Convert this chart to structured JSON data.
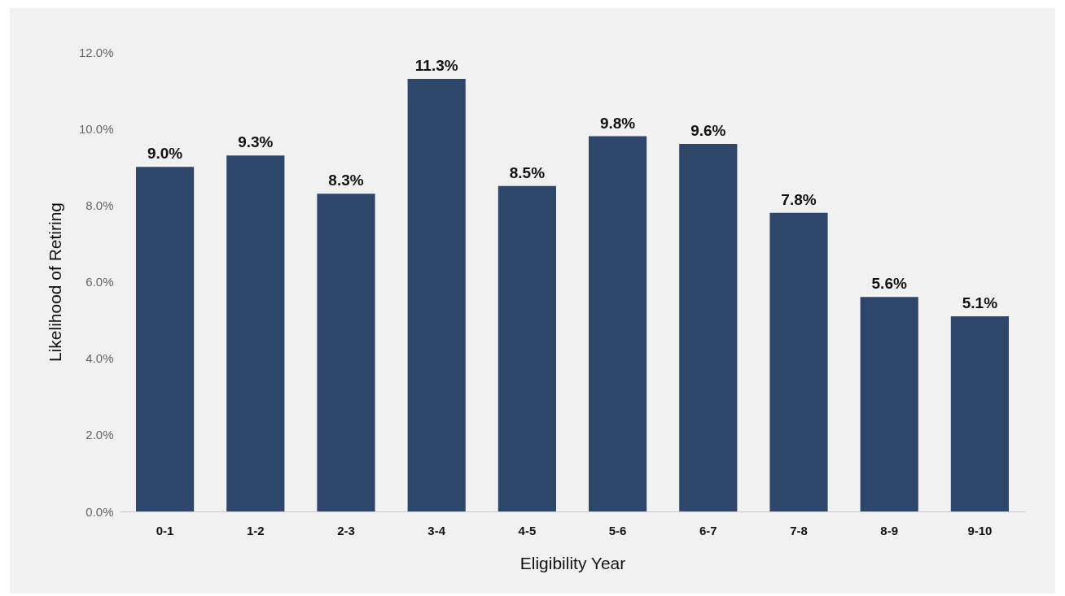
{
  "chart_data": {
    "type": "bar",
    "xlabel": "Eligibility Year",
    "ylabel": "Likelihood of Retiring",
    "categories": [
      "0-1",
      "1-2",
      "2-3",
      "3-4",
      "4-5",
      "5-6",
      "6-7",
      "7-8",
      "8-9",
      "9-10"
    ],
    "values": [
      9.0,
      9.3,
      8.3,
      11.3,
      8.5,
      9.8,
      9.6,
      7.8,
      5.6,
      5.1
    ],
    "value_labels": [
      "9.0%",
      "9.3%",
      "8.3%",
      "11.3%",
      "8.5%",
      "9.8%",
      "9.6%",
      "7.8%",
      "5.6%",
      "5.1%"
    ],
    "color": "#2d4669",
    "ylim": [
      0,
      12
    ],
    "yticks": [
      {
        "value": 0,
        "label": "0.0%"
      },
      {
        "value": 2,
        "label": "2.0%"
      },
      {
        "value": 4,
        "label": "4.0%"
      },
      {
        "value": 6,
        "label": "6.0%"
      },
      {
        "value": 8,
        "label": "8.0%"
      },
      {
        "value": 10,
        "label": "10.0%"
      },
      {
        "value": 12,
        "label": "12.0%"
      }
    ],
    "legend": false
  }
}
